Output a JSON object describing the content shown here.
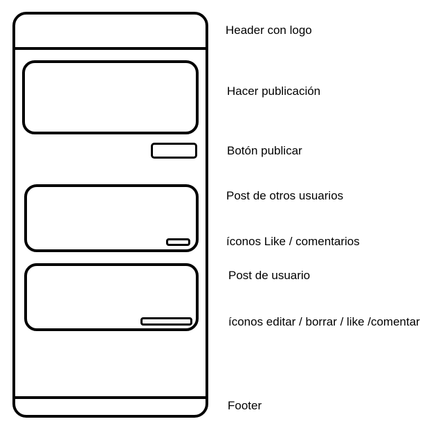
{
  "annotations": {
    "header": "Header con logo",
    "compose": "Hacer publicación",
    "publish_button": "Botón publicar",
    "others_post": "Post de otros usuarios",
    "others_post_icons": "íconos Like / comentarios",
    "user_post": "Post de usuario",
    "user_post_icons": "íconos editar / borrar / like /comentar",
    "footer": "Footer"
  }
}
